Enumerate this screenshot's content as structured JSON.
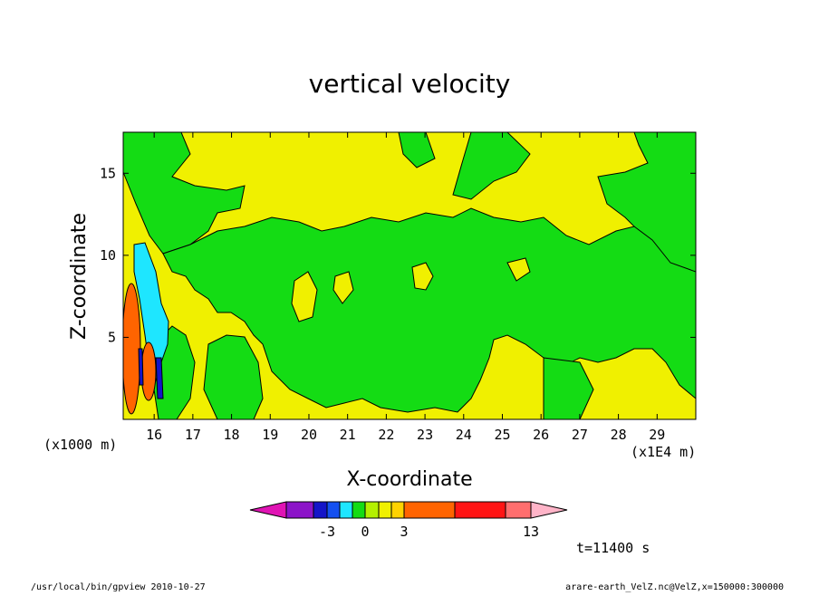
{
  "chart_data": {
    "type": "heatmap",
    "title": "vertical velocity",
    "xlabel": "X-coordinate",
    "ylabel": "Z-coordinate",
    "x_unit": "(x1E4 m)",
    "y_unit": "(x1000 m)",
    "xlim": [
      15.2,
      30.0
    ],
    "ylim": [
      0,
      17.5
    ],
    "x_ticks": [
      16,
      17,
      18,
      19,
      20,
      21,
      22,
      23,
      24,
      25,
      26,
      27,
      28,
      29
    ],
    "y_ticks": [
      5,
      10,
      15
    ],
    "colorbar": {
      "levels": [
        -5,
        -4,
        -3,
        -2,
        -1,
        0,
        1,
        2,
        3,
        8,
        11,
        13
      ],
      "tick_labels": [
        "-3",
        "0",
        "3",
        "13"
      ],
      "colors": [
        "#e014b4",
        "#8c14c8",
        "#1414c8",
        "#1450f0",
        "#1ee6ff",
        "#14dc14",
        "#b4f000",
        "#f0f000",
        "#ffd200",
        "#ff6400",
        "#ff1414",
        "#ff6e6e",
        "#ffb4c8"
      ]
    },
    "background_color": "#f0f000",
    "regions": [
      {
        "name": "positive-core-left",
        "level": 8,
        "color": "#ff6400",
        "x_center": 15.4,
        "z_center": 3.5,
        "x_halfwidth": 0.2,
        "z_halfwidth": 3.0
      },
      {
        "name": "positive-core-right",
        "level": 8,
        "color": "#ff6400",
        "x_center": 15.8,
        "z_center": 2.6,
        "x_halfwidth": 0.15,
        "z_halfwidth": 1.3
      },
      {
        "name": "negative-band",
        "level": -1,
        "color": "#1ee6ff",
        "x_center": 15.9,
        "z_center": 6.0,
        "x_halfwidth": 0.15,
        "z_halfwidth": 4.5
      }
    ],
    "time_label": "t=11400 s"
  },
  "footer": {
    "left": "/usr/local/bin/gpview  2010-10-27",
    "right": "arare-earth_VelZ.nc@VelZ,x=150000:300000"
  }
}
